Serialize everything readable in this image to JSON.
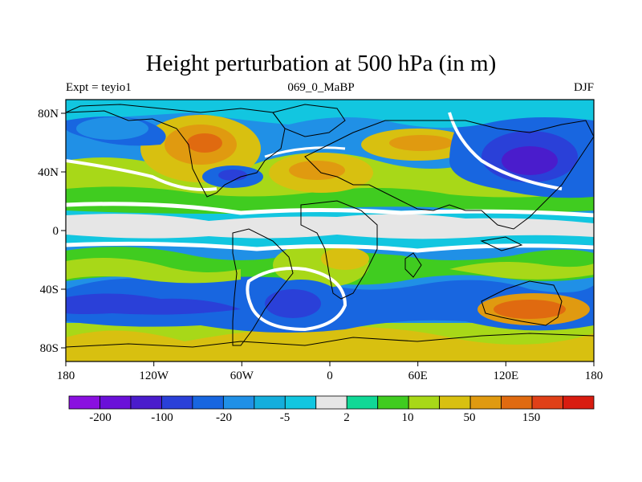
{
  "title": "Height perturbation at 500 hPa (in m)",
  "subtitle": {
    "left": "Expt = teyio1",
    "center": "069_0_MaBP",
    "right": "DJF"
  },
  "map": {
    "projection": "cylindrical equidistant",
    "lon_ticks": [
      "180",
      "120W",
      "60W",
      "0",
      "60E",
      "120E",
      "180"
    ],
    "lat_ticks": [
      "80N",
      "40N",
      "0",
      "40S",
      "80S"
    ]
  },
  "colorbar": {
    "colors": [
      "#8a10e0",
      "#6a10d8",
      "#4a1ccc",
      "#2a40d8",
      "#1866e0",
      "#2090e6",
      "#14aedc",
      "#12c6e0",
      "#e6e6e6",
      "#10d896",
      "#40cc20",
      "#a8d818",
      "#d8c010",
      "#e09a10",
      "#e06a10",
      "#e04018",
      "#d81c10"
    ],
    "labels": [
      "-200",
      "-100",
      "-20",
      "-5",
      "2",
      "10",
      "50",
      "150"
    ]
  },
  "palette": {
    "negative_deep": "#3a26d0",
    "negative": "#1a6ae0",
    "neutral": "#e6e6e6",
    "positive": "#a8d818",
    "positive_strong": "#e09a10"
  }
}
